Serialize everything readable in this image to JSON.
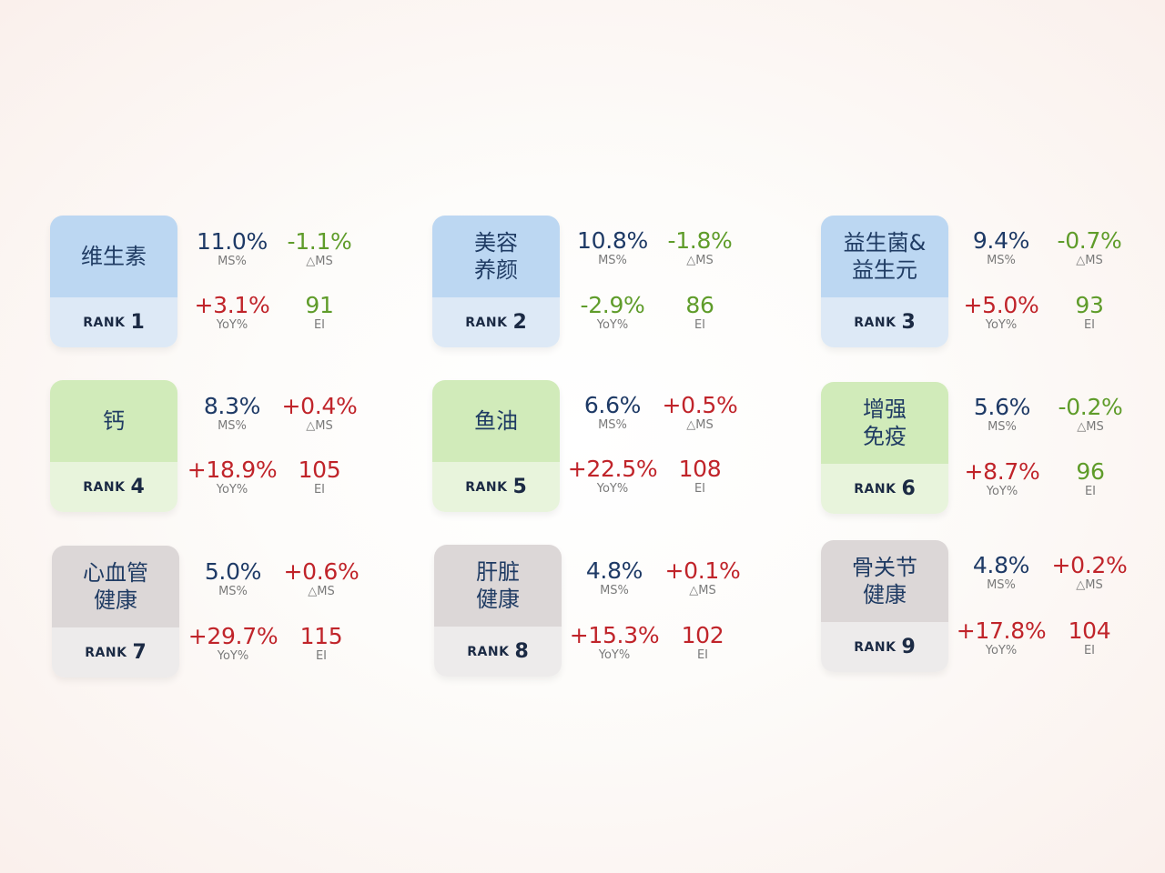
{
  "rank_label": "RANK",
  "labels": {
    "ms": "MS%",
    "dms": "△MS",
    "yoy": "YoY%",
    "ei": "EI"
  },
  "categories": [
    {
      "name": "维生素",
      "rank": "1",
      "ms": "11.0%",
      "dms": "-1.1%",
      "yoy": "+3.1%",
      "ei": "91"
    },
    {
      "name": "美容\n养颜",
      "rank": "2",
      "ms": "10.8%",
      "dms": "-1.8%",
      "yoy": "-2.9%",
      "ei": "86"
    },
    {
      "name": "益生菌&\n益生元",
      "rank": "3",
      "ms": "9.4%",
      "dms": "-0.7%",
      "yoy": "+5.0%",
      "ei": "93"
    },
    {
      "name": "钙",
      "rank": "4",
      "ms": "8.3%",
      "dms": "+0.4%",
      "yoy": "+18.9%",
      "ei": "105"
    },
    {
      "name": "鱼油",
      "rank": "5",
      "ms": "6.6%",
      "dms": "+0.5%",
      "yoy": "+22.5%",
      "ei": "108"
    },
    {
      "name": "增强\n免疫",
      "rank": "6",
      "ms": "5.6%",
      "dms": "-0.2%",
      "yoy": "+8.7%",
      "ei": "96"
    },
    {
      "name": "心血管\n健康",
      "rank": "7",
      "ms": "5.0%",
      "dms": "+0.6%",
      "yoy": "+29.7%",
      "ei": "115"
    },
    {
      "name": "肝脏\n健康",
      "rank": "8",
      "ms": "4.8%",
      "dms": "+0.1%",
      "yoy": "+15.3%",
      "ei": "102"
    },
    {
      "name": "骨关节\n健康",
      "rank": "9",
      "ms": "4.8%",
      "dms": "+0.2%",
      "yoy": "+17.8%",
      "ei": "104"
    }
  ],
  "colors": {
    "navy": "#1e3a66",
    "positive": "#c0242a",
    "negative": "#5f9c2a",
    "blue_card": "#bcd7f2",
    "green_card": "#d1ebba",
    "gray_card": "#dcd7d7"
  }
}
